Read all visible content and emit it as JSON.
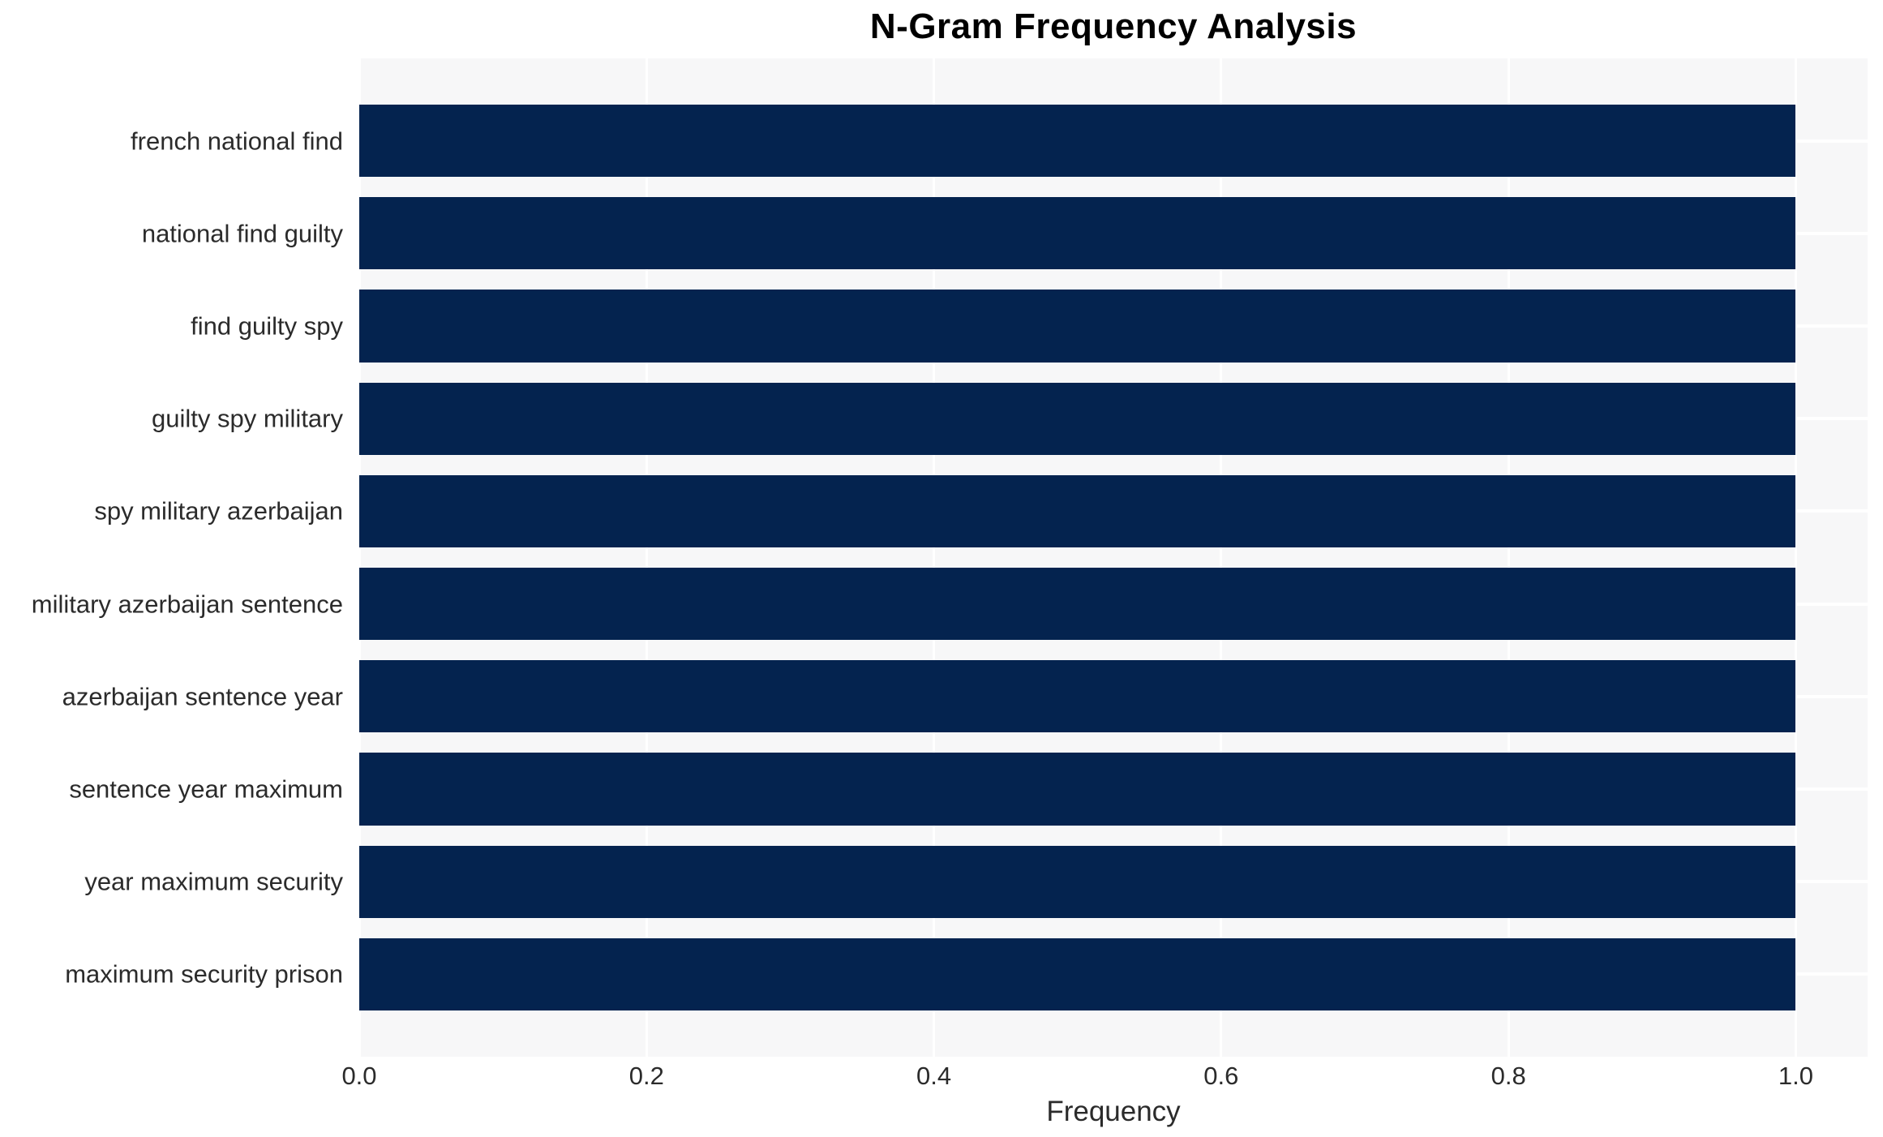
{
  "chart_data": {
    "type": "bar",
    "orientation": "horizontal",
    "title": "N-Gram Frequency Analysis",
    "xlabel": "Frequency",
    "ylabel": "",
    "categories": [
      "french national find",
      "national find guilty",
      "find guilty spy",
      "guilty spy military",
      "spy military azerbaijan",
      "military azerbaijan sentence",
      "azerbaijan sentence year",
      "sentence year maximum",
      "year maximum security",
      "maximum security prison"
    ],
    "values": [
      1.0,
      1.0,
      1.0,
      1.0,
      1.0,
      1.0,
      1.0,
      1.0,
      1.0,
      1.0
    ],
    "xticks": [
      0.0,
      0.2,
      0.4,
      0.6,
      0.8,
      1.0
    ],
    "xtick_labels": [
      "0.0",
      "0.2",
      "0.4",
      "0.6",
      "0.8",
      "1.0"
    ],
    "xlim": [
      0,
      1.05
    ],
    "grid": true,
    "legend": null,
    "colors": {
      "bar": "#04234f",
      "plot_background": "#f7f7f8",
      "gridline": "#ffffff",
      "title_text": "#000000",
      "tick_text": "#2b2b2b"
    }
  }
}
